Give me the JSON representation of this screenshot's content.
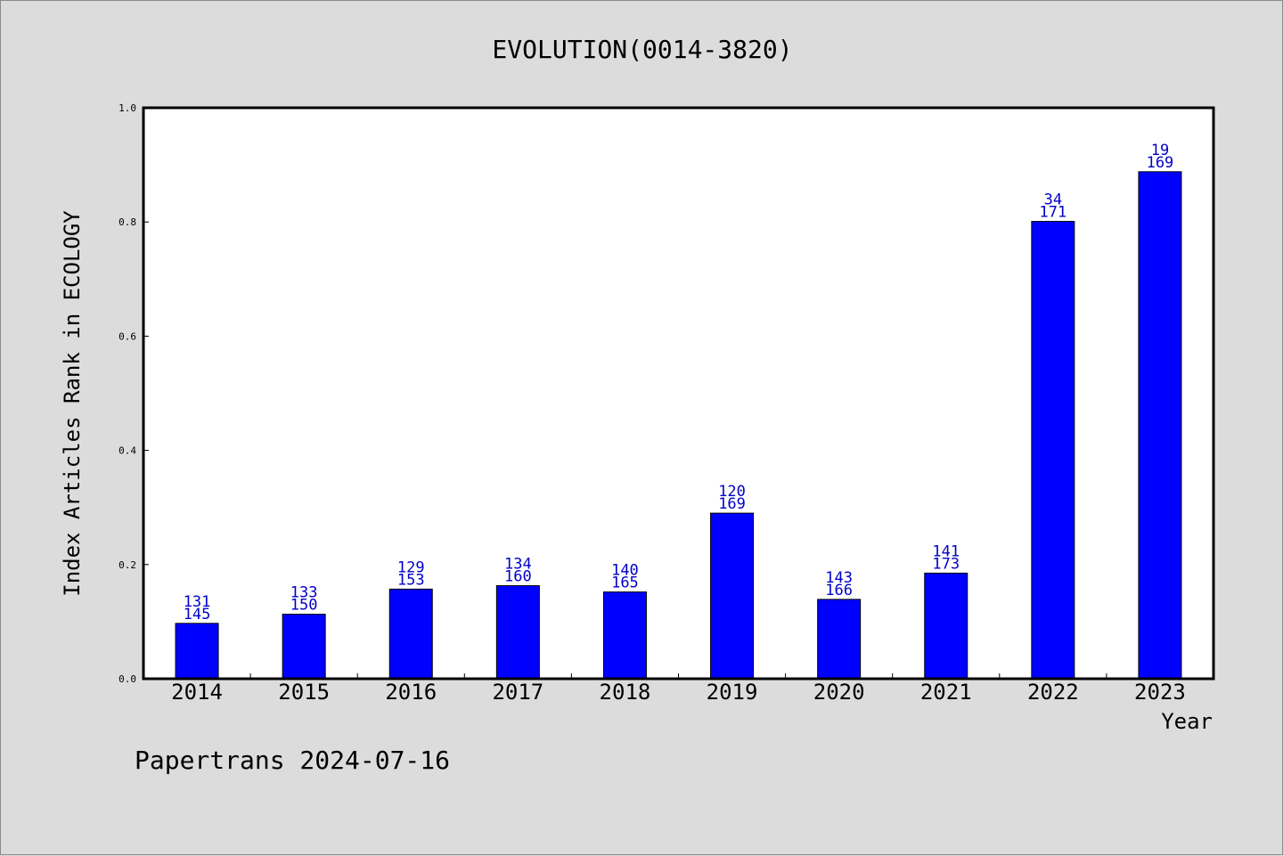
{
  "chart_data": {
    "type": "bar",
    "title": "EVOLUTION(0014-3820)",
    "xlabel": "Year",
    "ylabel": "Index Articles Rank in ECOLOGY",
    "ylim": [
      0,
      1.0
    ],
    "yticks": [
      "0.0",
      "0.2",
      "0.4",
      "0.6",
      "0.8",
      "1.0"
    ],
    "categories": [
      "2014",
      "2015",
      "2016",
      "2017",
      "2018",
      "2019",
      "2020",
      "2021",
      "2022",
      "2023"
    ],
    "values": [
      0.097,
      0.113,
      0.157,
      0.163,
      0.152,
      0.29,
      0.139,
      0.185,
      0.801,
      0.888
    ],
    "labels_top": [
      "131",
      "133",
      "129",
      "134",
      "140",
      "120",
      "143",
      "141",
      "34",
      "19"
    ],
    "labels_bottom": [
      "145",
      "150",
      "153",
      "160",
      "165",
      "169",
      "166",
      "173",
      "171",
      "169"
    ],
    "bar_color": "#0000ff",
    "label_color": "#0000c8",
    "grid": false
  },
  "footer": "Papertrans 2024-07-16"
}
